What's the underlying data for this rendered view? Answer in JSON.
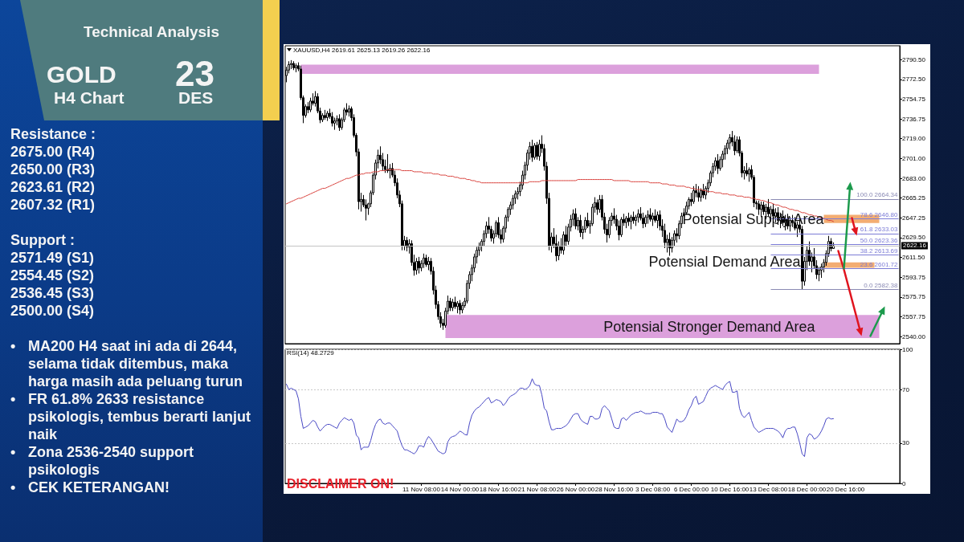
{
  "chart_data": [
    {
      "type": "other",
      "title": "Technical Analysis",
      "annotations": [
        "GOLD",
        "H4 Chart",
        "23",
        "DES"
      ]
    },
    {
      "type": "other",
      "title": "Resistance :",
      "annotations": [
        "2675.00 (R4)",
        "2650.00 (R3)",
        "2623.61 (R2)",
        "2607.32 (R1)"
      ]
    },
    {
      "type": "other",
      "title": "Support :",
      "annotations": [
        "2571.49 (S1)",
        "2554.45 (S2)",
        "2536.45 (S3)",
        "2500.00 (S4)"
      ]
    },
    {
      "type": "other",
      "annotations": [
        "• MA200 H4 saat ini ada di 2644, selama tidak ditembus, maka harga masih ada peluang turun",
        "• FR 61.8% 2633 resistance psikologis, tembus berarti lanjut naik",
        "• Zona 2536-2540 support psikologis",
        "• CEK KETERANGAN!"
      ]
    },
    {
      "type": "candlestick",
      "title": "XAUUSD,H4 2619.61 2625.13 2619.26 2622.16",
      "color": "#000000",
      "tick_labels": "y",
      "marker": "none",
      "categories": [
        null,
        null,
        null,
        null,
        null,
        null,
        null,
        null,
        null,
        null,
        null,
        null,
        null,
        null,
        null,
        null,
        null,
        null,
        null,
        null,
        null,
        null,
        null,
        null,
        null,
        null,
        null,
        null,
        null,
        null,
        null,
        null,
        null,
        null,
        null,
        null,
        null,
        null,
        null,
        null,
        null,
        null,
        null,
        null,
        null,
        null,
        null,
        null,
        null,
        null,
        null,
        null,
        null,
        null,
        null,
        null,
        null,
        null,
        null,
        null,
        null,
        null,
        null,
        null,
        null,
        null,
        null,
        null,
        null,
        null,
        null,
        null,
        null,
        null,
        null,
        null,
        null,
        null,
        null,
        null,
        null,
        null,
        null,
        null,
        null,
        null,
        null,
        null,
        null,
        null,
        null,
        null,
        null,
        null,
        null,
        null,
        null,
        null,
        null,
        null,
        null,
        null,
        null,
        null,
        null,
        null,
        null,
        null,
        null,
        null,
        null,
        null,
        null,
        null,
        null,
        null,
        null,
        null,
        null,
        null,
        null,
        null,
        null,
        null,
        null,
        null,
        null,
        null,
        null,
        null,
        null,
        null,
        null,
        null,
        null,
        null,
        null,
        null,
        null,
        null,
        null,
        null,
        null,
        null,
        null,
        null,
        null,
        null,
        null,
        null,
        null,
        null,
        null,
        null,
        null,
        null,
        null,
        null,
        null,
        null,
        null,
        null,
        null,
        null,
        null,
        null,
        null,
        null,
        null,
        null,
        null,
        null,
        null,
        null,
        null,
        null,
        null,
        null,
        null,
        null,
        null,
        null,
        null,
        null,
        null,
        null,
        null,
        null,
        null,
        null,
        null,
        null,
        null,
        null,
        null,
        null,
        null,
        null,
        null,
        null,
        null,
        null,
        null,
        null,
        null,
        null,
        null,
        null,
        null,
        null,
        null,
        null,
        null,
        null,
        null,
        null,
        null,
        null,
        null,
        null,
        null,
        null,
        null,
        null,
        null,
        null,
        null,
        null,
        null,
        null,
        null,
        null,
        null,
        null,
        null,
        null,
        null,
        null,
        null,
        null,
        null,
        null,
        null,
        null,
        null,
        null,
        null,
        null,
        null,
        null,
        null,
        null,
        null,
        null,
        null
      ],
      "ohlc": [
        [
          2776,
          2784,
          2770,
          2781
        ],
        [
          2781,
          2789,
          2778,
          2786
        ],
        [
          2786,
          2790,
          2782,
          2787
        ],
        [
          2787,
          2789,
          2781,
          2783
        ],
        [
          2783,
          2787,
          2779,
          2785
        ],
        [
          2785,
          2788,
          2780,
          2782
        ],
        [
          2782,
          2785,
          2754,
          2756
        ],
        [
          2756,
          2758,
          2733,
          2740
        ],
        [
          2740,
          2750,
          2738,
          2748
        ],
        [
          2748,
          2752,
          2742,
          2745
        ],
        [
          2745,
          2756,
          2743,
          2753
        ],
        [
          2753,
          2760,
          2749,
          2751
        ],
        [
          2751,
          2762,
          2748,
          2757
        ],
        [
          2757,
          2760,
          2742,
          2744
        ],
        [
          2744,
          2747,
          2733,
          2736
        ],
        [
          2736,
          2742,
          2734,
          2740
        ],
        [
          2740,
          2745,
          2736,
          2738
        ],
        [
          2738,
          2744,
          2735,
          2742
        ],
        [
          2742,
          2746,
          2737,
          2739
        ],
        [
          2739,
          2743,
          2730,
          2733
        ],
        [
          2733,
          2738,
          2727,
          2735
        ],
        [
          2735,
          2740,
          2731,
          2737
        ],
        [
          2737,
          2741,
          2726,
          2729
        ],
        [
          2729,
          2738,
          2727,
          2736
        ],
        [
          2736,
          2747,
          2734,
          2745
        ],
        [
          2745,
          2751,
          2740,
          2743
        ],
        [
          2743,
          2749,
          2739,
          2746
        ],
        [
          2746,
          2748,
          2735,
          2738
        ],
        [
          2738,
          2741,
          2720,
          2722
        ],
        [
          2722,
          2724,
          2703,
          2707
        ],
        [
          2707,
          2710,
          2655,
          2662
        ],
        [
          2662,
          2670,
          2653,
          2664
        ],
        [
          2664,
          2668,
          2657,
          2659
        ],
        [
          2659,
          2664,
          2645,
          2656
        ],
        [
          2656,
          2661,
          2650,
          2660
        ],
        [
          2660,
          2672,
          2657,
          2670
        ],
        [
          2670,
          2688,
          2668,
          2686
        ],
        [
          2686,
          2700,
          2682,
          2697
        ],
        [
          2697,
          2709,
          2692,
          2704
        ],
        [
          2704,
          2712,
          2696,
          2700
        ],
        [
          2700,
          2706,
          2690,
          2694
        ],
        [
          2694,
          2700,
          2688,
          2691
        ],
        [
          2691,
          2705,
          2688,
          2690
        ],
        [
          2690,
          2696,
          2683,
          2692
        ],
        [
          2692,
          2697,
          2684,
          2686
        ],
        [
          2686,
          2690,
          2676,
          2679
        ],
        [
          2679,
          2683,
          2665,
          2668
        ],
        [
          2668,
          2672,
          2657,
          2660
        ],
        [
          2660,
          2663,
          2618,
          2622
        ],
        [
          2622,
          2631,
          2618,
          2627
        ],
        [
          2627,
          2630,
          2617,
          2621
        ],
        [
          2621,
          2628,
          2615,
          2624
        ],
        [
          2624,
          2627,
          2604,
          2607
        ],
        [
          2607,
          2614,
          2595,
          2600
        ],
        [
          2600,
          2611,
          2596,
          2608
        ],
        [
          2608,
          2612,
          2597,
          2602
        ],
        [
          2602,
          2609,
          2599,
          2606
        ],
        [
          2606,
          2615,
          2602,
          2611
        ],
        [
          2611,
          2614,
          2603,
          2605
        ],
        [
          2605,
          2612,
          2600,
          2608
        ],
        [
          2608,
          2611,
          2596,
          2599
        ],
        [
          2599,
          2603,
          2578,
          2582
        ],
        [
          2582,
          2586,
          2565,
          2569
        ],
        [
          2569,
          2572,
          2555,
          2558
        ],
        [
          2558,
          2562,
          2548,
          2552
        ],
        [
          2552,
          2556,
          2546,
          2550
        ],
        [
          2550,
          2566,
          2548,
          2563
        ],
        [
          2563,
          2577,
          2560,
          2572
        ],
        [
          2572,
          2575,
          2563,
          2566
        ],
        [
          2566,
          2574,
          2563,
          2571
        ],
        [
          2571,
          2576,
          2565,
          2567
        ],
        [
          2567,
          2572,
          2561,
          2570
        ],
        [
          2570,
          2573,
          2560,
          2564
        ],
        [
          2564,
          2571,
          2561,
          2568
        ],
        [
          2568,
          2575,
          2566,
          2572
        ],
        [
          2572,
          2591,
          2570,
          2588
        ],
        [
          2588,
          2599,
          2583,
          2596
        ],
        [
          2596,
          2605,
          2590,
          2602
        ],
        [
          2602,
          2615,
          2598,
          2612
        ],
        [
          2612,
          2621,
          2606,
          2618
        ],
        [
          2618,
          2625,
          2613,
          2622
        ],
        [
          2622,
          2628,
          2617,
          2626
        ],
        [
          2626,
          2636,
          2622,
          2633
        ],
        [
          2633,
          2644,
          2629,
          2640
        ],
        [
          2640,
          2648,
          2633,
          2637
        ],
        [
          2637,
          2640,
          2626,
          2629
        ],
        [
          2629,
          2636,
          2624,
          2633
        ],
        [
          2633,
          2645,
          2630,
          2643
        ],
        [
          2643,
          2648,
          2629,
          2632
        ],
        [
          2632,
          2637,
          2624,
          2628
        ],
        [
          2628,
          2640,
          2625,
          2638
        ],
        [
          2638,
          2650,
          2634,
          2648
        ],
        [
          2648,
          2657,
          2644,
          2655
        ],
        [
          2655,
          2662,
          2650,
          2659
        ],
        [
          2659,
          2668,
          2655,
          2665
        ],
        [
          2665,
          2672,
          2660,
          2669
        ],
        [
          2669,
          2675,
          2664,
          2671
        ],
        [
          2671,
          2680,
          2667,
          2677
        ],
        [
          2677,
          2690,
          2673,
          2686
        ],
        [
          2686,
          2698,
          2682,
          2695
        ],
        [
          2695,
          2709,
          2690,
          2706
        ],
        [
          2706,
          2716,
          2700,
          2712
        ],
        [
          2712,
          2718,
          2698,
          2702
        ],
        [
          2702,
          2715,
          2700,
          2713
        ],
        [
          2713,
          2716,
          2700,
          2703
        ],
        [
          2703,
          2718,
          2699,
          2714
        ],
        [
          2714,
          2722,
          2706,
          2710
        ],
        [
          2710,
          2714,
          2690,
          2694
        ],
        [
          2694,
          2698,
          2660,
          2665
        ],
        [
          2665,
          2670,
          2618,
          2622
        ],
        [
          2622,
          2634,
          2616,
          2630
        ],
        [
          2630,
          2638,
          2620,
          2624
        ],
        [
          2624,
          2632,
          2608,
          2613
        ],
        [
          2613,
          2626,
          2609,
          2622
        ],
        [
          2622,
          2629,
          2615,
          2618
        ],
        [
          2618,
          2635,
          2614,
          2632
        ],
        [
          2632,
          2640,
          2622,
          2626
        ],
        [
          2626,
          2642,
          2623,
          2639
        ],
        [
          2639,
          2650,
          2635,
          2646
        ],
        [
          2646,
          2655,
          2640,
          2651
        ],
        [
          2651,
          2656,
          2637,
          2640
        ],
        [
          2640,
          2648,
          2636,
          2645
        ],
        [
          2645,
          2650,
          2630,
          2634
        ],
        [
          2634,
          2640,
          2628,
          2637
        ],
        [
          2637,
          2648,
          2634,
          2645
        ],
        [
          2645,
          2652,
          2638,
          2640
        ],
        [
          2640,
          2645,
          2633,
          2642
        ],
        [
          2642,
          2660,
          2640,
          2657
        ],
        [
          2657,
          2666,
          2652,
          2661
        ],
        [
          2661,
          2664,
          2650,
          2655
        ],
        [
          2655,
          2668,
          2652,
          2664
        ],
        [
          2664,
          2668,
          2645,
          2648
        ],
        [
          2648,
          2652,
          2633,
          2637
        ],
        [
          2637,
          2642,
          2625,
          2632
        ],
        [
          2632,
          2648,
          2629,
          2645
        ],
        [
          2645,
          2652,
          2640,
          2649
        ],
        [
          2649,
          2656,
          2642,
          2646
        ],
        [
          2646,
          2650,
          2636,
          2640
        ],
        [
          2640,
          2645,
          2627,
          2632
        ],
        [
          2632,
          2648,
          2630,
          2646
        ],
        [
          2646,
          2651,
          2640,
          2643
        ],
        [
          2643,
          2649,
          2638,
          2647
        ],
        [
          2647,
          2652,
          2640,
          2644
        ],
        [
          2644,
          2650,
          2637,
          2648
        ],
        [
          2648,
          2653,
          2642,
          2645
        ],
        [
          2645,
          2650,
          2640,
          2648
        ],
        [
          2648,
          2655,
          2643,
          2651
        ],
        [
          2651,
          2657,
          2645,
          2647
        ],
        [
          2647,
          2652,
          2638,
          2642
        ],
        [
          2642,
          2650,
          2639,
          2648
        ],
        [
          2648,
          2654,
          2642,
          2650
        ],
        [
          2650,
          2656,
          2644,
          2646
        ],
        [
          2646,
          2652,
          2640,
          2649
        ],
        [
          2649,
          2655,
          2643,
          2645
        ],
        [
          2645,
          2653,
          2638,
          2650
        ],
        [
          2650,
          2654,
          2636,
          2640
        ],
        [
          2640,
          2646,
          2630,
          2636
        ],
        [
          2636,
          2642,
          2620,
          2625
        ],
        [
          2625,
          2632,
          2616,
          2628
        ],
        [
          2628,
          2634,
          2613,
          2620
        ],
        [
          2620,
          2630,
          2616,
          2627
        ],
        [
          2627,
          2636,
          2622,
          2633
        ],
        [
          2633,
          2638,
          2625,
          2631
        ],
        [
          2631,
          2645,
          2628,
          2642
        ],
        [
          2642,
          2652,
          2638,
          2649
        ],
        [
          2649,
          2656,
          2644,
          2652
        ],
        [
          2652,
          2662,
          2650,
          2658
        ],
        [
          2658,
          2666,
          2655,
          2664
        ],
        [
          2664,
          2670,
          2658,
          2662
        ],
        [
          2662,
          2676,
          2660,
          2672
        ],
        [
          2672,
          2678,
          2666,
          2670
        ],
        [
          2670,
          2676,
          2662,
          2666
        ],
        [
          2666,
          2674,
          2662,
          2672
        ],
        [
          2672,
          2678,
          2665,
          2668
        ],
        [
          2668,
          2676,
          2664,
          2674
        ],
        [
          2674,
          2682,
          2670,
          2679
        ],
        [
          2679,
          2690,
          2676,
          2688
        ],
        [
          2688,
          2697,
          2684,
          2694
        ],
        [
          2694,
          2702,
          2690,
          2699
        ],
        [
          2699,
          2705,
          2687,
          2692
        ],
        [
          2692,
          2703,
          2690,
          2700
        ],
        [
          2700,
          2708,
          2693,
          2705
        ],
        [
          2705,
          2713,
          2700,
          2710
        ],
        [
          2710,
          2718,
          2705,
          2715
        ],
        [
          2715,
          2723,
          2709,
          2720
        ],
        [
          2720,
          2726,
          2712,
          2716
        ],
        [
          2716,
          2722,
          2704,
          2708
        ],
        [
          2708,
          2721,
          2706,
          2718
        ],
        [
          2718,
          2721,
          2703,
          2706
        ],
        [
          2706,
          2708,
          2684,
          2688
        ],
        [
          2688,
          2694,
          2682,
          2690
        ],
        [
          2690,
          2697,
          2685,
          2687
        ],
        [
          2687,
          2693,
          2680,
          2691
        ],
        [
          2691,
          2695,
          2682,
          2684
        ],
        [
          2684,
          2686,
          2657,
          2661
        ],
        [
          2661,
          2663,
          2655,
          2660
        ],
        [
          2660,
          2663,
          2650,
          2655
        ],
        [
          2655,
          2662,
          2648,
          2659
        ],
        [
          2659,
          2662,
          2650,
          2653
        ],
        [
          2653,
          2660,
          2646,
          2657
        ],
        [
          2657,
          2664.34,
          2649,
          2651
        ],
        [
          2651,
          2658,
          2644,
          2655
        ],
        [
          2655,
          2660,
          2646,
          2649
        ],
        [
          2649,
          2656,
          2643,
          2652
        ],
        [
          2652,
          2657,
          2641,
          2645
        ],
        [
          2645,
          2652,
          2638,
          2648
        ],
        [
          2648,
          2654,
          2640,
          2643
        ],
        [
          2643,
          2650,
          2636,
          2646
        ],
        [
          2646,
          2651,
          2637,
          2640
        ],
        [
          2640,
          2648,
          2635,
          2645
        ],
        [
          2645,
          2650,
          2639,
          2643
        ],
        [
          2643,
          2648,
          2636,
          2638
        ],
        [
          2638,
          2644,
          2630,
          2641
        ],
        [
          2641,
          2646,
          2634,
          2637
        ],
        [
          2637,
          2640,
          2582.38,
          2590
        ],
        [
          2590,
          2612,
          2586,
          2608
        ],
        [
          2608,
          2622,
          2600,
          2618
        ],
        [
          2618,
          2626,
          2604,
          2608
        ],
        [
          2608,
          2616,
          2598,
          2612
        ],
        [
          2612,
          2620,
          2601,
          2604
        ],
        [
          2604,
          2609,
          2592,
          2596
        ],
        [
          2596,
          2603,
          2590,
          2600
        ],
        [
          2600,
          2606,
          2593,
          2603
        ],
        [
          2603,
          2610,
          2598,
          2607
        ],
        [
          2607,
          2618,
          2604,
          2615
        ],
        [
          2615,
          2631,
          2612,
          2626
        ],
        [
          2626,
          2629,
          2617,
          2619.61
        ],
        [
          2619.61,
          2625.13,
          2619.26,
          2622.16
        ],
        null,
        null,
        null,
        null,
        null,
        null,
        null,
        null,
        null,
        null,
        null,
        null,
        null,
        null,
        null,
        null,
        null,
        null,
        null,
        null,
        null,
        null,
        null,
        null,
        null,
        null,
        null
      ],
      "series": [
        {
          "type": "line",
          "color": "#d9443f",
          "values": [
            2660,
            2661,
            2662,
            2663,
            2664,
            2665,
            2665,
            2666,
            2667,
            2668,
            2669,
            2670,
            2671,
            2672,
            2673,
            2674,
            2674,
            2675,
            2676,
            2677,
            2678,
            2679,
            2680,
            2681,
            2682,
            2683,
            2683,
            2684,
            2685,
            2686,
            2686,
            2687,
            2687,
            2688,
            2688,
            2688,
            2689,
            2689,
            2689,
            2690,
            2690,
            2690,
            2691,
            2691,
            2691,
            2691,
            2691,
            2691,
            2690,
            2690,
            2690,
            2690,
            2690,
            2689,
            2689,
            2689,
            2689,
            2688,
            2688,
            2688,
            2688,
            2687,
            2687,
            2687,
            2686,
            2686,
            2686,
            2685,
            2685,
            2685,
            2684,
            2684,
            2683,
            2683,
            2683,
            2682,
            2682,
            2681,
            2681,
            2680,
            2680,
            2679,
            2679,
            2679,
            2679,
            2679,
            2679,
            2679,
            2679,
            2679,
            2679,
            2679,
            2679,
            2679,
            2679,
            2679,
            2679,
            2679,
            2679,
            2679,
            2679,
            2680,
            2680,
            2680,
            2680,
            2680,
            2681,
            2681,
            2681,
            2681,
            2681,
            2681,
            2681,
            2681,
            2681,
            2681,
            2681,
            2681,
            2681,
            2681,
            2681,
            2682,
            2682,
            2682,
            2682,
            2682,
            2682,
            2682,
            2682,
            2682,
            2682,
            2682,
            2682,
            2682,
            2682,
            2682,
            2681,
            2681,
            2681,
            2681,
            2681,
            2681,
            2681,
            2680,
            2680,
            2680,
            2680,
            2680,
            2680,
            2680,
            2680,
            2679,
            2679,
            2679,
            2679,
            2679,
            2678,
            2678,
            2678,
            2677,
            2677,
            2677,
            2676,
            2676,
            2676,
            2676,
            2675,
            2675,
            2674,
            2674,
            2673,
            2673,
            2673,
            2672,
            2672,
            2671,
            2671,
            2671,
            2670,
            2670,
            2670,
            2669,
            2669,
            2669,
            2668,
            2668,
            2668,
            2667,
            2667,
            2667,
            2666,
            2666,
            2666,
            2665,
            2665,
            2664,
            2664,
            2663,
            2663,
            2662,
            2661,
            2661,
            2660,
            2659,
            2659,
            2658,
            2657,
            2657,
            2656,
            2655,
            2655,
            2654,
            2654,
            2653,
            2652,
            2652,
            2651,
            2650,
            2650,
            2649,
            2649,
            2648,
            2647,
            2647,
            2646,
            2645,
            2645,
            2644,
            null,
            null,
            null,
            null,
            null,
            null,
            null,
            null,
            null,
            null,
            null,
            null,
            null,
            null,
            null,
            null,
            null,
            null,
            null,
            null,
            null,
            null,
            null,
            null,
            null,
            null,
            null
          ]
        }
      ],
      "ylim": [
        2533.5,
        2803
      ],
      "yticks": [
        {
          "value": 2790.5,
          "label": "2790.50"
        },
        {
          "value": 2772.5,
          "label": "2772.50"
        },
        {
          "value": 2754.75,
          "label": "2754.75"
        },
        {
          "value": 2736.75,
          "label": "2736.75"
        },
        {
          "value": 2719,
          "label": "2719.00"
        },
        {
          "value": 2701,
          "label": "2701.00"
        },
        {
          "value": 2683,
          "label": "2683.00"
        },
        {
          "value": 2665.25,
          "label": "2665.25"
        },
        {
          "value": 2647.25,
          "label": "2647.25"
        },
        {
          "value": 2629.5,
          "label": "2629.50"
        },
        {
          "value": 2611.5,
          "label": "2611.50"
        },
        {
          "value": 2593.75,
          "label": "2593.75"
        },
        {
          "value": 2575.75,
          "label": "2575.75"
        },
        {
          "value": 2557.75,
          "label": "2557.75"
        },
        {
          "value": 2540,
          "label": "2540.00"
        }
      ],
      "ref_lines": [
        {
          "axis": "y",
          "value": 2622.16,
          "label": "2622.16",
          "color": "#c4c4c4"
        },
        {
          "axis": "y",
          "value": 2664.34,
          "label": "100.0 2664.34",
          "color": "#8a8ab4"
        },
        {
          "axis": "y",
          "value": 2646.8,
          "label": "78.6 2646.80",
          "color": "#7c7cd6"
        },
        {
          "axis": "y",
          "value": 2633.03,
          "label": "61.8 2633.03",
          "color": "#7c7cd6"
        },
        {
          "axis": "y",
          "value": 2623.36,
          "label": "50.0 2623.36",
          "color": "#7c7cd6"
        },
        {
          "axis": "y",
          "value": 2613.69,
          "label": "38.2 2613.69",
          "color": "#7c7cd6"
        },
        {
          "axis": "y",
          "value": 2601.72,
          "label": "23.6 2601.72",
          "color": "#7c7cd6"
        },
        {
          "axis": "y",
          "value": 2582.38,
          "label": "0.0 2582.38",
          "color": "#8a8ab4"
        }
      ],
      "bands": [
        {
          "axis": "y",
          "from": 2777.5,
          "to": 2786,
          "color": "#dca0dc"
        },
        {
          "axis": "y",
          "from": 2538.5,
          "to": 2559.4,
          "label": "Potensial Stronger Demand Area",
          "color": "#dca0dc"
        },
        {
          "axis": "y",
          "from": 2642.6,
          "to": 2650.1,
          "label": "Potensial Supply Area",
          "color": "#f3ad72"
        },
        {
          "axis": "y",
          "from": 2602.2,
          "to": 2607,
          "label": "Potensial Demand Area",
          "color": "#f3ad72"
        }
      ]
    },
    {
      "type": "line",
      "title": "RSI(14) 48.2729",
      "color": "#4848c4",
      "marker": "none",
      "grid": "y",
      "ylim": [
        0,
        100
      ],
      "yticks": [
        0,
        30,
        70,
        100
      ],
      "annotations": [
        "DISCLAIMER ON!"
      ],
      "categories": [
        null,
        null,
        null,
        null,
        null,
        null,
        null,
        null,
        null,
        null,
        null,
        null,
        null,
        null,
        null,
        null,
        null,
        null,
        null,
        null,
        null,
        null,
        null,
        null,
        null,
        null,
        null,
        null,
        null,
        null,
        null,
        null,
        null,
        null,
        null,
        null,
        null,
        null,
        null,
        null,
        null,
        null,
        null,
        null,
        null,
        null,
        null,
        null,
        null,
        null,
        null,
        null,
        null,
        null,
        null,
        null,
        "11 Nov 08:00",
        null,
        null,
        null,
        null,
        null,
        null,
        null,
        null,
        null,
        null,
        null,
        null,
        null,
        null,
        null,
        "14 Nov 00:00",
        null,
        null,
        null,
        null,
        null,
        null,
        null,
        null,
        null,
        null,
        null,
        null,
        null,
        null,
        null,
        "18 Nov 16:00",
        null,
        null,
        null,
        null,
        null,
        null,
        null,
        null,
        null,
        null,
        null,
        null,
        null,
        null,
        null,
        "21 Nov 08:00",
        null,
        null,
        null,
        null,
        null,
        null,
        null,
        null,
        null,
        null,
        null,
        null,
        null,
        null,
        null,
        "26 Nov 00:00",
        null,
        null,
        null,
        null,
        null,
        null,
        null,
        null,
        null,
        null,
        null,
        null,
        null,
        null,
        null,
        "28 Nov 16:00",
        null,
        null,
        null,
        null,
        null,
        null,
        null,
        null,
        null,
        null,
        null,
        null,
        null,
        null,
        null,
        "3 Dec 08:00",
        null,
        null,
        null,
        null,
        null,
        null,
        null,
        null,
        null,
        null,
        null,
        null,
        null,
        null,
        null,
        "6 Dec 00:00",
        null,
        null,
        null,
        null,
        null,
        null,
        null,
        null,
        null,
        null,
        null,
        null,
        null,
        null,
        null,
        "10 Dec 16:00",
        null,
        null,
        null,
        null,
        null,
        null,
        null,
        null,
        null,
        null,
        null,
        null,
        null,
        null,
        null,
        "13 Dec 08:00",
        null,
        null,
        null,
        null,
        null,
        null,
        null,
        null,
        null,
        null,
        null,
        null,
        null,
        null,
        null,
        "18 Dec 00:00",
        null,
        null,
        null,
        null,
        null,
        null,
        null,
        null,
        null,
        null,
        null,
        null,
        null,
        null,
        null,
        "20 Dec 16:00",
        null,
        null,
        null,
        null,
        null,
        null,
        null,
        null,
        null,
        null,
        null,
        null,
        null,
        null,
        null,
        null,
        null,
        null,
        null,
        null,
        null,
        null
      ],
      "values": [
        74,
        70,
        71,
        70,
        69,
        63,
        50,
        41,
        42,
        43,
        45,
        47,
        46,
        42,
        39,
        41,
        43,
        44,
        44,
        43,
        42,
        41,
        45,
        47,
        49,
        48,
        47,
        48,
        45,
        36,
        34,
        25,
        27,
        27,
        27,
        32,
        39,
        44,
        47,
        48,
        45,
        44,
        45,
        45,
        43,
        41,
        39,
        33,
        28,
        25,
        25,
        24,
        23,
        22,
        24,
        28,
        28,
        27,
        32,
        35,
        33,
        30,
        27,
        24,
        23,
        22,
        23,
        31,
        34,
        35,
        35.5,
        37,
        39,
        38,
        36.5,
        36,
        45,
        51,
        54,
        56,
        57,
        59,
        61,
        63,
        64,
        60,
        61,
        62.5,
        62,
        61,
        58,
        60,
        63,
        65,
        66,
        67,
        69,
        71,
        71,
        70,
        71,
        73,
        78,
        74,
        73,
        73,
        66,
        56,
        54,
        46,
        40,
        40,
        41,
        41,
        41,
        42,
        43,
        45,
        48,
        51,
        52,
        52,
        48,
        46,
        45,
        44,
        50,
        50,
        48,
        48,
        49,
        56,
        58,
        56,
        54,
        48,
        42,
        41,
        41,
        48,
        49,
        47,
        49,
        51,
        52,
        53,
        53,
        54,
        53,
        52,
        52,
        52,
        53,
        53,
        53,
        52,
        52,
        48,
        42,
        40,
        38,
        43,
        48,
        46,
        46,
        47,
        50,
        55,
        58,
        63,
        65,
        59,
        60,
        61,
        65,
        69,
        71,
        72,
        73,
        72,
        71,
        70,
        73,
        75,
        76,
        68,
        68,
        69,
        56,
        51,
        49,
        51,
        53,
        47,
        42,
        40,
        38,
        39,
        40,
        41,
        41,
        41,
        41,
        40,
        39,
        37,
        34,
        39,
        41,
        41,
        42,
        42,
        37,
        30,
        22,
        20,
        34,
        37,
        36,
        33,
        34,
        36,
        39,
        43,
        48,
        49,
        48,
        48.2729,
        null,
        null,
        null,
        null,
        null,
        null,
        null,
        null,
        null,
        null,
        null,
        null,
        null,
        null,
        null,
        null,
        null,
        null,
        null,
        null,
        null,
        null,
        null,
        null,
        null,
        null,
        null
      ]
    }
  ]
}
